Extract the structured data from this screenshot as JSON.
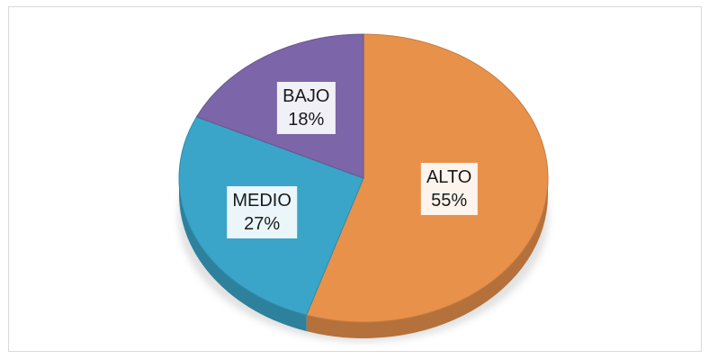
{
  "chart_data": {
    "type": "pie",
    "slices": [
      {
        "label": "ALTO",
        "value": 55,
        "value_text": "55%",
        "color": "#e8914b"
      },
      {
        "label": "MEDIO",
        "value": 27,
        "value_text": "27%",
        "color": "#3aa5c8"
      },
      {
        "label": "BAJO",
        "value": 18,
        "value_text": "18%",
        "color": "#7c65a8"
      }
    ],
    "title": "",
    "legend": "none",
    "style": "3d-tilted"
  }
}
